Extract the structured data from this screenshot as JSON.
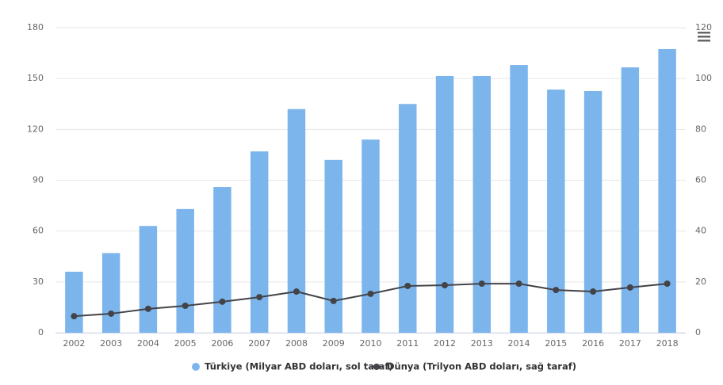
{
  "chart_data": {
    "type": "bar",
    "categories": [
      "2002",
      "2003",
      "2004",
      "2005",
      "2006",
      "2007",
      "2008",
      "2009",
      "2010",
      "2011",
      "2012",
      "2013",
      "2014",
      "2015",
      "2016",
      "2017",
      "2018"
    ],
    "series": [
      {
        "name": "Türkiye (Milyar ABD doları, sol taraf)",
        "type": "bar",
        "color": "#7cb5ec",
        "values": [
          36,
          47,
          63,
          73,
          86,
          107,
          132,
          102,
          114,
          135,
          151.5,
          151.5,
          158,
          143.5,
          142.6,
          156.6,
          167.4
        ]
      },
      {
        "name": "Dünya (Trilyon ABD doları, sağ taraf)",
        "type": "line",
        "axis": "y2",
        "color": "#434348",
        "values": [
          6.5,
          7.5,
          9.4,
          10.6,
          12.2,
          14.0,
          16.2,
          12.5,
          15.3,
          18.4,
          18.7,
          19.3,
          19.3,
          16.8,
          16.2,
          17.8,
          19.3
        ]
      }
    ],
    "ylim": [
      0,
      180
    ],
    "yticks": [
      0,
      30,
      60,
      90,
      120,
      150,
      180
    ],
    "y2lim": [
      0,
      120
    ],
    "y2ticks": [
      0,
      20,
      40,
      60,
      80,
      100,
      120
    ],
    "grid": true,
    "legend": "bottom"
  }
}
